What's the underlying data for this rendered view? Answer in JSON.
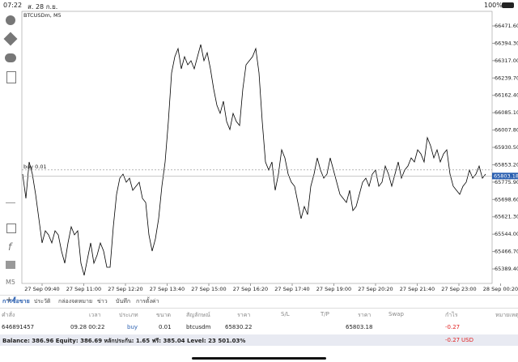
{
  "status_bar": {
    "time": "07:22",
    "date": "ส. 28 ก.ย.",
    "battery": "100%"
  },
  "chart_data": {
    "type": "line",
    "title": "BTCUSDm, M5",
    "color": "#000000",
    "ylim": [
      65324.6,
      66536.5
    ],
    "yticks": [
      {
        "value": 66471.6,
        "label": "66471.60"
      },
      {
        "value": 66394.3,
        "label": "66394.30"
      },
      {
        "value": 66317.0,
        "label": "66317.00"
      },
      {
        "value": 66239.7,
        "label": "66239.70"
      },
      {
        "value": 66162.4,
        "label": "66162.40"
      },
      {
        "value": 66085.1,
        "label": "66085.10"
      },
      {
        "value": 66007.8,
        "label": "66007.80"
      },
      {
        "value": 65930.5,
        "label": "65930.50"
      },
      {
        "value": 65853.2,
        "label": "65853.20"
      },
      {
        "value": 65775.9,
        "label": "65775.90"
      },
      {
        "value": 65698.6,
        "label": "65698.60"
      },
      {
        "value": 65621.3,
        "label": "65621.30"
      },
      {
        "value": 65544.0,
        "label": "65544.00"
      },
      {
        "value": 65466.7,
        "label": "65466.70"
      },
      {
        "value": 65389.4,
        "label": "65389.40"
      }
    ],
    "x_labels": [
      "27 Sep 09:40",
      "27 Sep 11:00",
      "27 Sep 12:20",
      "27 Sep 13:40",
      "27 Sep 15:00",
      "27 Sep 16:20",
      "27 Sep 17:40",
      "27 Sep 19:00",
      "27 Sep 20:20",
      "27 Sep 21:40",
      "27 Sep 23:00",
      "28 Sep 00:20"
    ],
    "values": [
      65811.5,
      65703.3,
      65865.6,
      65811.5,
      65721.3,
      65613.1,
      65504.9,
      65559.0,
      65541.0,
      65504.9,
      65559.0,
      65541.0,
      65468.9,
      65414.7,
      65504.9,
      65577.1,
      65541.0,
      65559.0,
      65414.7,
      65360.6,
      65432.8,
      65504.9,
      65414.7,
      65450.8,
      65504.9,
      65468.9,
      65396.7,
      65396.7,
      65577.1,
      65721.3,
      65793.5,
      65811.5,
      65775.4,
      65793.5,
      65739.4,
      65757.4,
      65775.4,
      65703.3,
      65685.3,
      65541.0,
      65468.9,
      65523.0,
      65613.1,
      65757.4,
      65865.6,
      66046.0,
      66262.4,
      66334.5,
      66370.6,
      66280.4,
      66334.5,
      66298.5,
      66316.5,
      66280.4,
      66334.5,
      66388.6,
      66316.5,
      66352.6,
      66280.4,
      66190.3,
      66118.1,
      66082.0,
      66136.1,
      66046.0,
      66009.9,
      66082.0,
      66046.0,
      66027.9,
      66190.3,
      66298.5,
      66316.5,
      66334.5,
      66370.6,
      66262.4,
      66046.0,
      65865.6,
      65829.6,
      65865.6,
      65739.4,
      65811.5,
      65919.7,
      65883.7,
      65811.5,
      65775.4,
      65757.4,
      65685.3,
      65613.1,
      65667.2,
      65631.2,
      65757.4,
      65811.5,
      65883.7,
      65829.6,
      65793.5,
      65811.5,
      65883.7,
      65829.6,
      65775.4,
      65721.3,
      65703.3,
      65685.3,
      65739.4,
      65649.2,
      65667.2,
      65721.3,
      65775.4,
      65793.5,
      65757.4,
      65811.5,
      65829.6,
      65757.4,
      65775.4,
      65847.6,
      65811.5,
      65757.4,
      65811.5,
      65865.6,
      65793.5,
      65829.6,
      65847.6,
      65883.7,
      65865.6,
      65919.7,
      65901.7,
      65865.6,
      65973.8,
      65937.8,
      65883.7,
      65919.7,
      65865.6,
      65901.7,
      65919.7,
      65811.5,
      65757.4,
      65739.4,
      65721.3,
      65757.4,
      65775.4,
      65829.6,
      65793.5,
      65811.5,
      65847.6,
      65793.5,
      65811.5
    ],
    "order_label": "buy 0.01",
    "order_price": 65830.22,
    "current_price": 65803.18
  },
  "tabs": [
    "การซื้อขาย",
    "ประวัติ",
    "กล่องจดหมาย",
    "ข่าว",
    "บันทึก",
    "การตั้งค่า"
  ],
  "table": {
    "headers": [
      "คำสั่ง",
      "เวลา",
      "ประเภท",
      "ขนาด",
      "สัญลักษณ์",
      "ราคา",
      "S/L",
      "T/P",
      "ราคา",
      "Swap",
      "กำไร",
      "หมายเหตุ"
    ],
    "row": [
      "646891457",
      "09.28 00:22",
      "buy",
      "0.01",
      "btcusdm",
      "-0.27"
    ]
  },
  "summary": {
    "text": "Balance: 386.96 Equity: 386.69 หลักประกัน: 1.65 ฟรี: 385.04 Level: 23 501.03%",
    "profit": "-0.27",
    "currency": "USD"
  }
}
